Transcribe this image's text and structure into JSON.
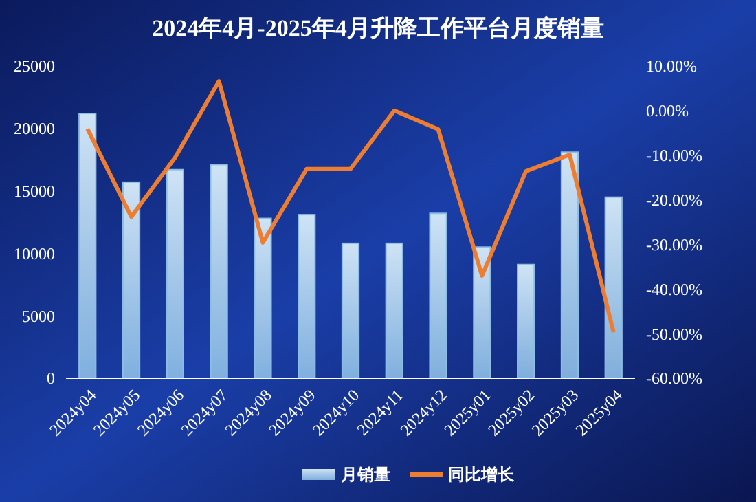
{
  "chart_data": {
    "type": "bar",
    "title": "2024年4月-2025年4月升降工作平台月度销量",
    "categories": [
      "2024y04",
      "2024y05",
      "2024y06",
      "2024y07",
      "2024y08",
      "2024y09",
      "2024y10",
      "2024y11",
      "2024y12",
      "2025y01",
      "2025y02",
      "2025y03",
      "2025y04"
    ],
    "series": [
      {
        "name": "月销量",
        "color": "#8cbde6",
        "values": [
          21200,
          15700,
          16700,
          17100,
          12800,
          13100,
          10800,
          10800,
          13200,
          10500,
          9100,
          18100,
          14500
        ]
      },
      {
        "name": "同比增长",
        "type": "line",
        "axis": "y2",
        "color": "#ed7d31",
        "values": [
          -4.1,
          -23.8,
          -10.5,
          6.6,
          -29.6,
          -13.1,
          -13.1,
          0.0,
          -4.2,
          -37.0,
          -13.6,
          -9.9,
          -49.7
        ]
      }
    ],
    "ylim": [
      0,
      25000
    ],
    "yticks": [
      0,
      5000,
      10000,
      15000,
      20000,
      25000
    ],
    "y2lim": [
      -60,
      10
    ],
    "y2ticks": [
      {
        "value": -60,
        "label": "-60.00%"
      },
      {
        "value": -50,
        "label": "-50.00%"
      },
      {
        "value": -40,
        "label": "-40.00%"
      },
      {
        "value": -30,
        "label": "-30.00%"
      },
      {
        "value": -20,
        "label": "-20.00%"
      },
      {
        "value": -10,
        "label": "-10.00%"
      },
      {
        "value": 0,
        "label": "0.00%"
      },
      {
        "value": 10,
        "label": "10.00%"
      }
    ],
    "grid": false,
    "legend": "bottom",
    "marker": "none",
    "line_style": "solid"
  }
}
